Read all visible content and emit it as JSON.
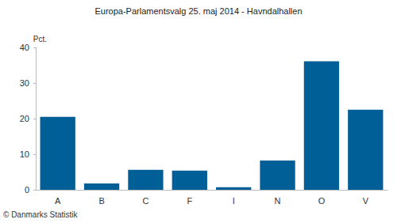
{
  "chart_data": {
    "type": "bar",
    "title": "Europa-Parlamentsvalg 25. maj 2014 - Havndalhallen",
    "y_label": "Pct.",
    "annotation": "© Danmarks Statistik",
    "categories": [
      "A",
      "B",
      "C",
      "F",
      "I",
      "N",
      "O",
      "V"
    ],
    "values": [
      20.5,
      1.8,
      5.6,
      5.4,
      0.7,
      8.2,
      36.1,
      22.5
    ],
    "color": "#005f96",
    "ylim": [
      0,
      40
    ],
    "yticks": [
      0,
      10,
      20,
      30,
      40
    ],
    "grid": false
  }
}
